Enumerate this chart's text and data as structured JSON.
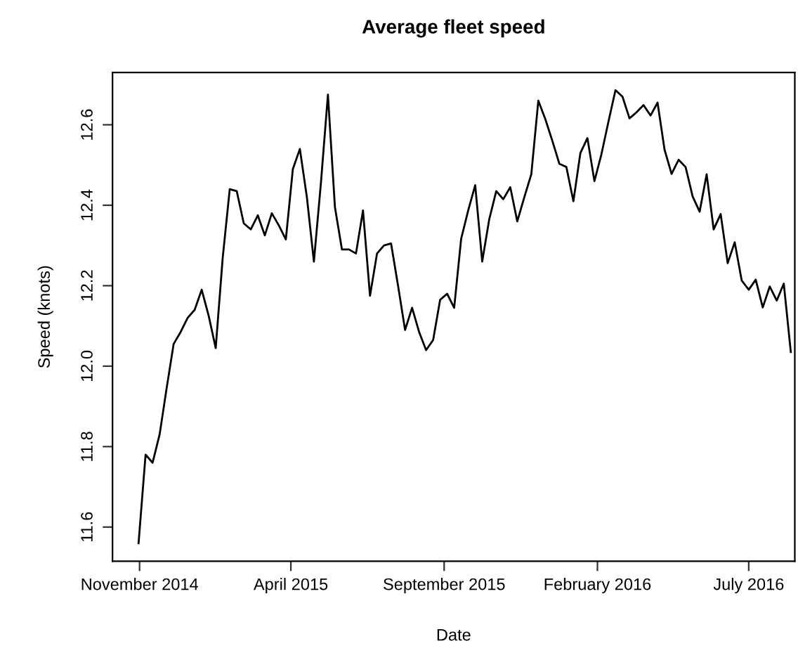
{
  "chart_data": {
    "type": "line",
    "title": "Average fleet speed",
    "xlabel": "Date",
    "ylabel": "Speed (knots)",
    "x": [
      "2014-10-31",
      "2014-11-07",
      "2014-11-14",
      "2014-11-21",
      "2014-11-28",
      "2014-12-05",
      "2014-12-12",
      "2014-12-19",
      "2014-12-26",
      "2015-01-02",
      "2015-01-09",
      "2015-01-16",
      "2015-01-23",
      "2015-01-30",
      "2015-02-06",
      "2015-02-13",
      "2015-02-20",
      "2015-02-27",
      "2015-03-06",
      "2015-03-13",
      "2015-03-20",
      "2015-03-27",
      "2015-04-03",
      "2015-04-10",
      "2015-04-17",
      "2015-04-24",
      "2015-05-01",
      "2015-05-08",
      "2015-05-15",
      "2015-05-22",
      "2015-05-29",
      "2015-06-05",
      "2015-06-12",
      "2015-06-19",
      "2015-06-26",
      "2015-07-03",
      "2015-07-10",
      "2015-07-17",
      "2015-07-24",
      "2015-07-31",
      "2015-08-07",
      "2015-08-14",
      "2015-08-21",
      "2015-08-28",
      "2015-09-04",
      "2015-09-11",
      "2015-09-18",
      "2015-09-25",
      "2015-10-02",
      "2015-10-09",
      "2015-10-16",
      "2015-10-23",
      "2015-10-30",
      "2015-11-06",
      "2015-11-13",
      "2015-11-20",
      "2015-11-27",
      "2015-12-04",
      "2015-12-11",
      "2015-12-18",
      "2015-12-25",
      "2016-01-01",
      "2016-01-08",
      "2016-01-15",
      "2016-01-22",
      "2016-01-29",
      "2016-02-05",
      "2016-02-12",
      "2016-02-19",
      "2016-02-26",
      "2016-03-04",
      "2016-03-11",
      "2016-03-18",
      "2016-03-25",
      "2016-04-01",
      "2016-04-08",
      "2016-04-15",
      "2016-04-22",
      "2016-04-29",
      "2016-05-06",
      "2016-05-13",
      "2016-05-20",
      "2016-05-27",
      "2016-06-03",
      "2016-06-10",
      "2016-06-17",
      "2016-06-24",
      "2016-07-01",
      "2016-07-08",
      "2016-07-15",
      "2016-07-22",
      "2016-07-29",
      "2016-08-05",
      "2016-08-12"
    ],
    "series": [
      {
        "color": "#000000",
        "values": [
          11.56,
          11.78,
          11.76,
          11.83,
          11.945,
          12.055,
          12.085,
          12.12,
          12.14,
          12.19,
          12.125,
          12.045,
          12.27,
          12.44,
          12.435,
          12.355,
          12.34,
          12.375,
          12.325,
          12.38,
          12.35,
          12.315,
          12.49,
          12.54,
          12.42,
          12.26,
          12.455,
          12.675,
          12.395,
          12.29,
          12.29,
          12.28,
          12.387,
          12.175,
          12.28,
          12.3,
          12.305,
          12.2,
          12.09,
          12.145,
          12.085,
          12.04,
          12.065,
          12.165,
          12.18,
          12.145,
          12.317,
          12.387,
          12.45,
          12.26,
          12.365,
          12.435,
          12.415,
          12.445,
          12.36,
          12.42,
          12.477,
          12.66,
          12.614,
          12.56,
          12.503,
          12.495,
          12.41,
          12.53,
          12.567,
          12.46,
          12.527,
          12.608,
          12.686,
          12.67,
          12.616,
          12.631,
          12.649,
          12.623,
          12.655,
          12.538,
          12.478,
          12.513,
          12.495,
          12.422,
          12.384,
          12.477,
          12.34,
          12.378,
          12.256,
          12.308,
          12.213,
          12.19,
          12.215,
          12.146,
          12.198,
          12.163,
          12.205,
          12.035
        ]
      }
    ],
    "xlim": [
      "2014-10-05",
      "2016-08-16"
    ],
    "xticks": [
      {
        "value": "2014-11-01",
        "label": "November 2014"
      },
      {
        "value": "2015-04-01",
        "label": "April 2015"
      },
      {
        "value": "2015-09-01",
        "label": "September 2015"
      },
      {
        "value": "2016-02-01",
        "label": "February 2016"
      },
      {
        "value": "2016-07-01",
        "label": "July 2016"
      }
    ],
    "ylim": [
      11.515,
      12.73
    ],
    "yticks": [
      11.6,
      11.8,
      {
        "value": 12.0,
        "label": "12.0"
      },
      12.2,
      12.4,
      12.6
    ],
    "grid": false,
    "marker": "none",
    "line_style": "solid"
  }
}
